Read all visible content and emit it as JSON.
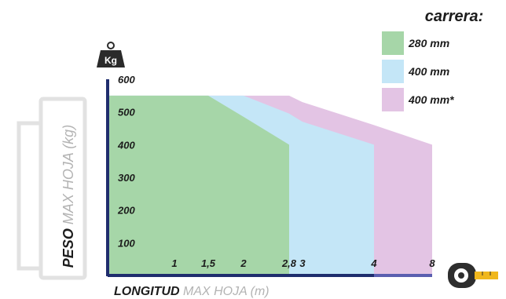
{
  "chart_data": {
    "type": "area",
    "title": "",
    "xlabel_bold": "LONGITUD",
    "xlabel_light": "MAX HOJA (m)",
    "ylabel_bold": "PESO",
    "ylabel_light": "MAX HOJA (kg)",
    "legend_title": "carrera:",
    "legend_placement": "top-right",
    "y_ticks": [
      "100",
      "200",
      "300",
      "400",
      "500",
      "600"
    ],
    "y_tick_values": [
      100,
      200,
      300,
      400,
      500,
      600
    ],
    "ylim": [
      0,
      600
    ],
    "x_ticks": [
      "1",
      "1,5",
      "2",
      "2,8",
      "3",
      "4",
      "8"
    ],
    "x_categories": [
      "0",
      "1",
      "1,5",
      "2",
      "2,8",
      "3",
      "4",
      "8"
    ],
    "series": [
      {
        "name": "280 mm",
        "color": "#a6d6a8",
        "points": [
          [
            "0",
            550
          ],
          [
            "1",
            550
          ],
          [
            "1,5",
            550
          ],
          [
            "2",
            485
          ],
          [
            "2,8",
            400
          ]
        ]
      },
      {
        "name": "400 mm",
        "color": "#c4e6f7",
        "points": [
          [
            "0",
            550
          ],
          [
            "2",
            550
          ],
          [
            "2,8",
            495
          ],
          [
            "3",
            470
          ],
          [
            "4",
            400
          ]
        ]
      },
      {
        "name": "400 mm*",
        "color": "#e3c4e4",
        "points": [
          [
            "0",
            550
          ],
          [
            "2,8",
            550
          ],
          [
            "3",
            530
          ],
          [
            "4",
            460
          ],
          [
            "8",
            400
          ]
        ]
      }
    ],
    "weight_icon_label": "Kg",
    "axis_color": "#1f2d6d",
    "tape_icon": "tape-measure-icon"
  }
}
